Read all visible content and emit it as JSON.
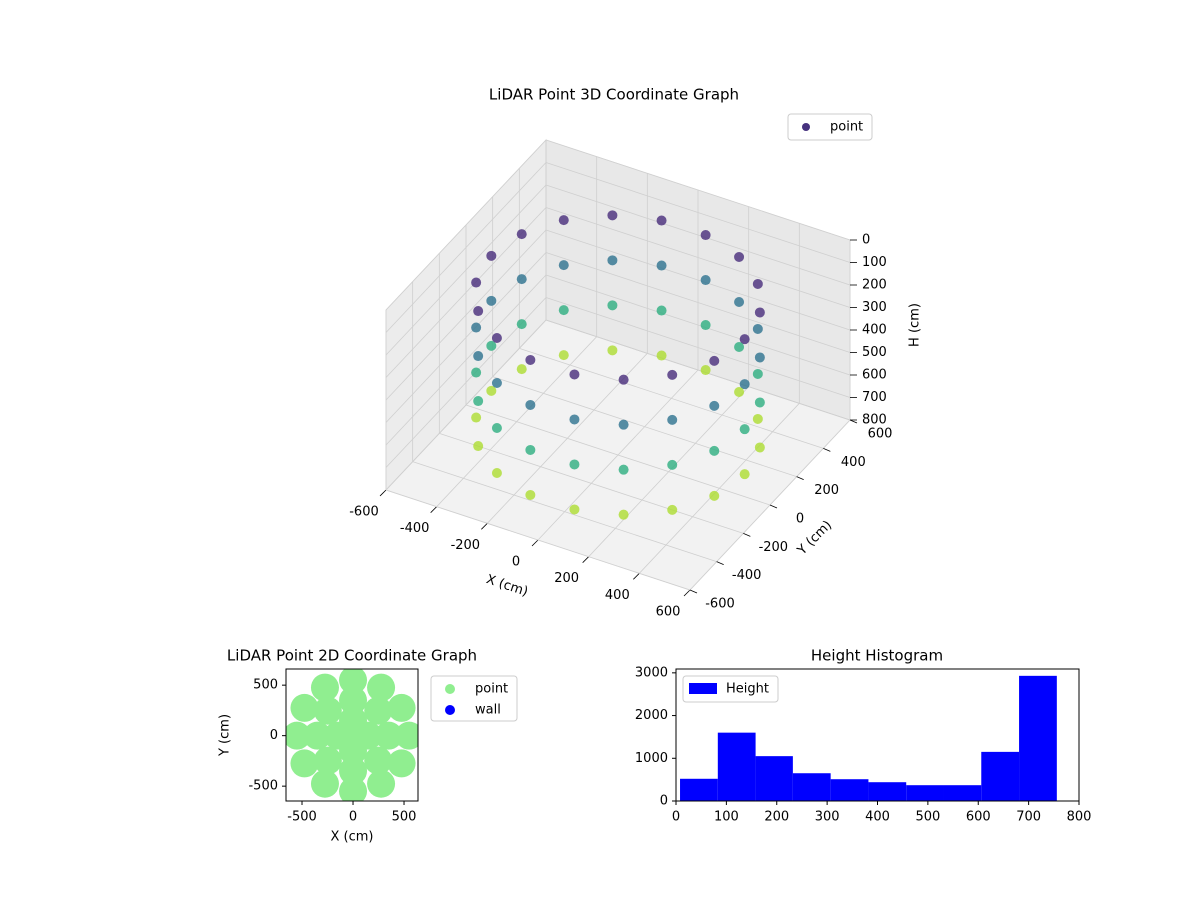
{
  "chart_data": [
    {
      "type": "scatter3d",
      "title": "LiDAR Point 3D Coordinate Graph",
      "xlabel": "X (cm)",
      "ylabel": "Y (cm)",
      "zlabel": "H (cm)",
      "xlim": [
        -600,
        600
      ],
      "ylim": [
        -600,
        600
      ],
      "zlim": [
        0,
        800
      ],
      "z_inverted": true,
      "xticks": [
        -600,
        -400,
        -200,
        0,
        200,
        400,
        600
      ],
      "yticks": [
        -600,
        -400,
        -200,
        0,
        200,
        400,
        600
      ],
      "zticks": [
        0,
        100,
        200,
        300,
        400,
        500,
        600,
        700,
        800
      ],
      "colormap": "viridis",
      "grid": true,
      "legend": "upper right",
      "series": [
        {
          "name": "point",
          "color": "#46327e",
          "x": [
            500,
            500,
            500,
            500,
            470,
            470,
            470,
            470,
            383,
            383,
            383,
            383,
            250,
            250,
            250,
            250,
            87,
            87,
            87,
            87,
            -87,
            -87,
            -87,
            -87,
            -250,
            -250,
            -250,
            -250,
            -383,
            -383,
            -383,
            -383,
            -470,
            -470,
            -470,
            -470,
            -500,
            -500,
            -500,
            -500,
            -470,
            -470,
            -470,
            -470,
            -383,
            -383,
            -383,
            -383,
            -250,
            -250,
            -250,
            -250,
            -87,
            -87,
            -87,
            -87,
            87,
            87,
            87,
            87,
            250,
            250,
            250,
            250,
            383,
            383,
            383,
            383,
            470,
            470,
            470,
            470
          ],
          "y": [
            0,
            0,
            0,
            0,
            171,
            171,
            171,
            171,
            321,
            321,
            321,
            321,
            433,
            433,
            433,
            433,
            492,
            492,
            492,
            492,
            492,
            492,
            492,
            492,
            433,
            433,
            433,
            433,
            321,
            321,
            321,
            321,
            171,
            171,
            171,
            171,
            0,
            0,
            0,
            0,
            -171,
            -171,
            -171,
            -171,
            -321,
            -321,
            -321,
            -321,
            -433,
            -433,
            -433,
            -433,
            -492,
            -492,
            -492,
            -492,
            -492,
            -492,
            -492,
            -492,
            -433,
            -433,
            -433,
            -433,
            -321,
            -321,
            -321,
            -321,
            -171,
            -171,
            -171,
            -171
          ],
          "h": [
            100,
            300,
            500,
            700,
            100,
            300,
            500,
            700,
            100,
            300,
            500,
            700,
            100,
            300,
            500,
            700,
            100,
            300,
            500,
            700,
            100,
            300,
            500,
            700,
            100,
            300,
            500,
            700,
            100,
            300,
            500,
            700,
            100,
            300,
            500,
            700,
            100,
            300,
            500,
            700,
            100,
            300,
            500,
            700,
            100,
            300,
            500,
            700,
            100,
            300,
            500,
            700,
            100,
            300,
            500,
            700,
            100,
            300,
            500,
            700,
            100,
            300,
            500,
            700,
            100,
            300,
            500,
            700,
            100,
            300,
            500,
            700
          ]
        }
      ]
    },
    {
      "type": "scatter",
      "title": "LiDAR Point 2D Coordinate Graph",
      "xlabel": "X (cm)",
      "ylabel": "Y (cm)",
      "xlim": [
        -657,
        637
      ],
      "ylim": [
        -647,
        660
      ],
      "xticks": [
        -500,
        0,
        500
      ],
      "yticks": [
        -500,
        0,
        500
      ],
      "legend": "outside right",
      "series": [
        {
          "name": "point",
          "color": "#90ee90",
          "x": [
            550,
            476,
            275,
            0,
            -275,
            -476,
            -550,
            -476,
            -275,
            0,
            275,
            476,
            350,
            247,
            0,
            -247,
            -350,
            -247,
            0,
            247,
            150,
            0,
            -150,
            0,
            0
          ],
          "y": [
            0,
            275,
            476,
            550,
            476,
            275,
            0,
            -275,
            -476,
            -550,
            -476,
            -275,
            0,
            247,
            350,
            247,
            0,
            -247,
            -350,
            -247,
            0,
            150,
            0,
            -150,
            0
          ]
        },
        {
          "name": "wall",
          "color": "#0000ff",
          "x": [],
          "y": []
        }
      ]
    },
    {
      "type": "histogram",
      "title": "Height Histogram",
      "legend_label": "Height",
      "color": "#0000ff",
      "bins": [
        8,
        83,
        158,
        232,
        307,
        382,
        457,
        531,
        606,
        681,
        756
      ],
      "counts": [
        520,
        1600,
        1050,
        650,
        510,
        440,
        370,
        370,
        1150,
        2930
      ],
      "xlim": [
        0,
        800
      ],
      "ylim": [
        0,
        3090
      ],
      "xticks": [
        0,
        100,
        200,
        300,
        400,
        500,
        600,
        700,
        800
      ],
      "yticks": [
        0,
        1000,
        2000,
        3000
      ],
      "legend": "upper left"
    }
  ]
}
